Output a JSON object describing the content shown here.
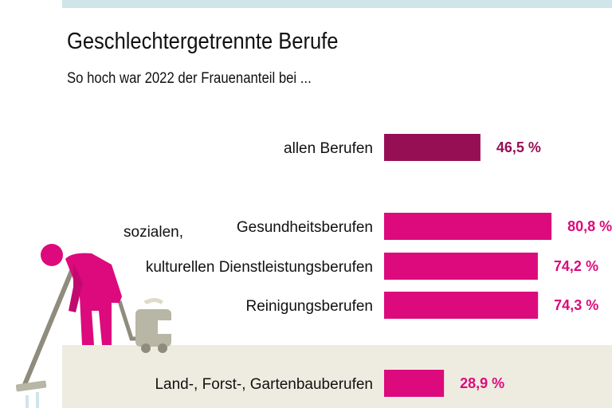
{
  "title": "Geschlechtergetrennte Berufe",
  "subtitle": "So hoch war 2022 der Frauenanteil bei ...",
  "colors": {
    "total": "#960f55",
    "category": "#dc0a7d",
    "background_top": "#cfe5ea",
    "floor": "#eeece0"
  },
  "chart_data": {
    "type": "bar",
    "orientation": "horizontal",
    "title": "Geschlechtergetrennte Berufe",
    "subtitle": "So hoch war 2022 der Frauenanteil bei ...",
    "categories": [
      "allen Berufen",
      "Gesundheitsberufen",
      "sozialen, kulturellen Dienstleistungsberufen",
      "Reinigungsberufen",
      "Land-, Forst-, Gartenbauberufen"
    ],
    "category_lines": [
      [
        "allen Berufen"
      ],
      [
        "Gesundheitsberufen"
      ],
      [
        "sozialen,",
        "kulturellen Dienstleistungsberufen"
      ],
      [
        "Reinigungsberufen"
      ],
      [
        "Land-, Forst-, Gartenbauberufen"
      ]
    ],
    "values": [
      46.5,
      80.8,
      74.2,
      74.3,
      28.9
    ],
    "value_labels": [
      "46,5 %",
      "80,8 %",
      "74,2 %",
      "74,3 %",
      "28,9 %"
    ],
    "unit": "%",
    "xlim": [
      0,
      100
    ],
    "grid": false
  }
}
